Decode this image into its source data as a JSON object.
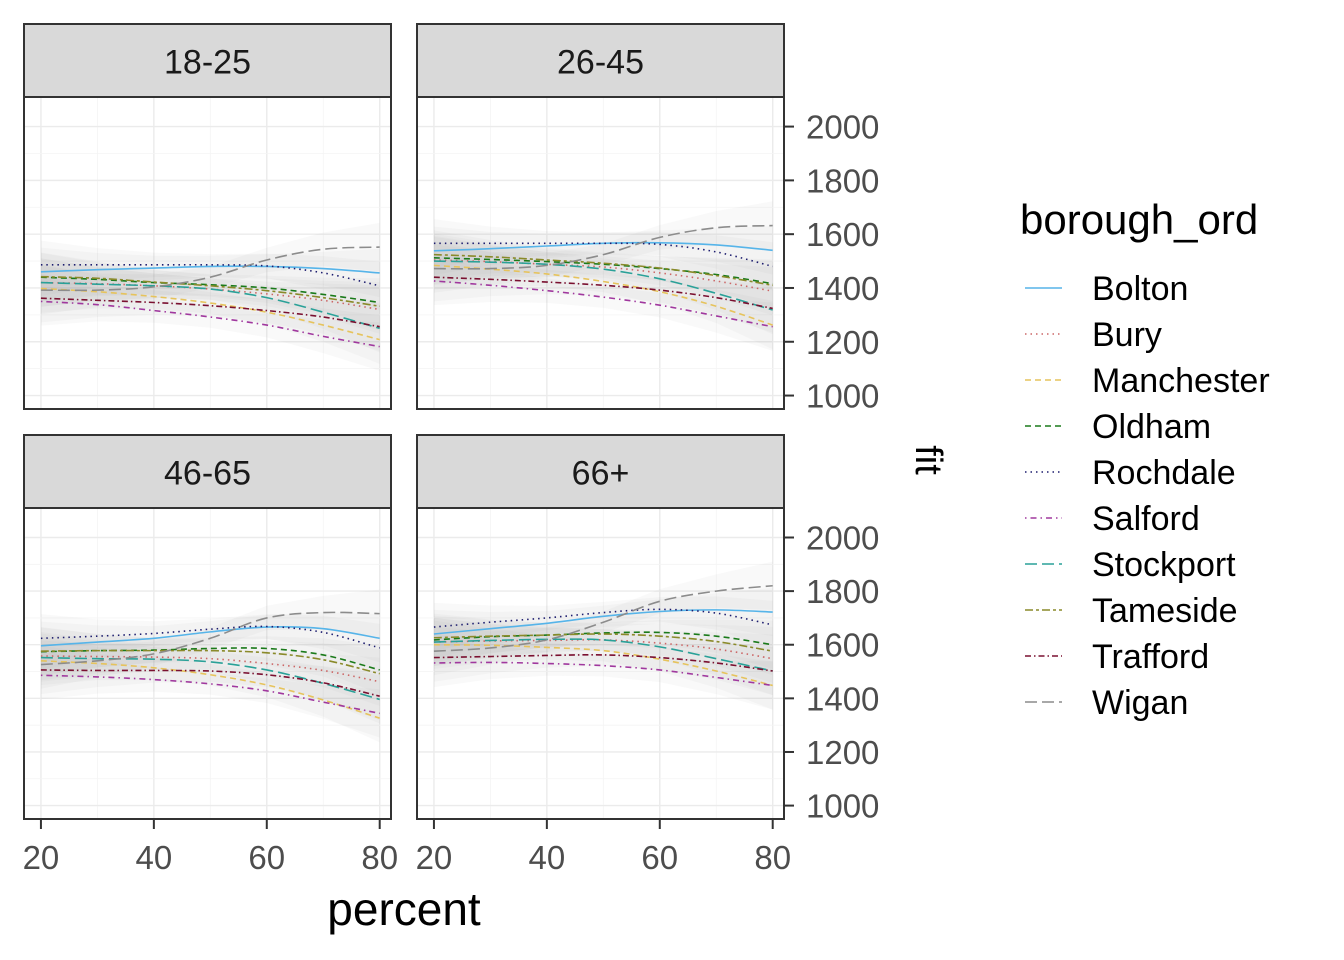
{
  "chart_data": {
    "type": "line",
    "xlabel": "percent",
    "ylabel": "fit",
    "xlim": [
      17,
      82
    ],
    "ylim": [
      950,
      2110
    ],
    "xticks": [
      20,
      40,
      60,
      80
    ],
    "yticks": [
      1000,
      1200,
      1400,
      1600,
      1800,
      2000
    ],
    "grid": true,
    "legend": {
      "title": "borough_ord",
      "placement": "right",
      "entries": [
        "Bolton",
        "Bury",
        "Manchester",
        "Oldham",
        "Rochdale",
        "Salford",
        "Stockport",
        "Tameside",
        "Trafford",
        "Wigan"
      ]
    },
    "x": [
      20,
      30,
      40,
      50,
      60,
      70,
      80
    ],
    "panels": [
      {
        "label": "18-25",
        "series": [
          {
            "name": "Bolton",
            "values": [
              1460,
              1468,
              1474,
              1480,
              1480,
              1472,
              1456
            ]
          },
          {
            "name": "Bury",
            "values": [
              1420,
              1416,
              1408,
              1396,
              1378,
              1354,
              1320
            ]
          },
          {
            "name": "Manchester",
            "values": [
              1398,
              1386,
              1368,
              1344,
              1310,
              1262,
              1208
            ]
          },
          {
            "name": "Oldham",
            "values": [
              1440,
              1432,
              1420,
              1412,
              1400,
              1376,
              1346
            ]
          },
          {
            "name": "Rochdale",
            "values": [
              1486,
              1486,
              1486,
              1486,
              1482,
              1456,
              1408
            ]
          },
          {
            "name": "Salford",
            "values": [
              1350,
              1338,
              1316,
              1292,
              1262,
              1220,
              1182
            ]
          },
          {
            "name": "Stockport",
            "values": [
              1420,
              1414,
              1408,
              1396,
              1364,
              1310,
              1250
            ]
          },
          {
            "name": "Tameside",
            "values": [
              1442,
              1436,
              1422,
              1408,
              1390,
              1364,
              1332
            ]
          },
          {
            "name": "Trafford",
            "values": [
              1362,
              1354,
              1346,
              1334,
              1316,
              1292,
              1256
            ]
          },
          {
            "name": "Wigan",
            "values": [
              1392,
              1392,
              1404,
              1440,
              1504,
              1544,
              1552
            ]
          }
        ]
      },
      {
        "label": "26-45",
        "series": [
          {
            "name": "Bolton",
            "values": [
              1538,
              1546,
              1556,
              1566,
              1568,
              1560,
              1540
            ]
          },
          {
            "name": "Bury",
            "values": [
              1504,
              1498,
              1488,
              1478,
              1456,
              1426,
              1388
            ]
          },
          {
            "name": "Manchester",
            "values": [
              1484,
              1470,
              1452,
              1424,
              1386,
              1332,
              1262
            ]
          },
          {
            "name": "Oldham",
            "values": [
              1512,
              1506,
              1498,
              1488,
              1472,
              1450,
              1416
            ]
          },
          {
            "name": "Rochdale",
            "values": [
              1566,
              1566,
              1566,
              1566,
              1562,
              1534,
              1480
            ]
          },
          {
            "name": "Salford",
            "values": [
              1426,
              1410,
              1390,
              1366,
              1336,
              1296,
              1256
            ]
          },
          {
            "name": "Stockport",
            "values": [
              1500,
              1496,
              1488,
              1470,
              1434,
              1380,
              1318
            ]
          },
          {
            "name": "Tameside",
            "values": [
              1524,
              1516,
              1504,
              1492,
              1474,
              1446,
              1410
            ]
          },
          {
            "name": "Trafford",
            "values": [
              1440,
              1432,
              1422,
              1410,
              1392,
              1364,
              1324
            ]
          },
          {
            "name": "Wigan",
            "values": [
              1472,
              1472,
              1484,
              1524,
              1588,
              1624,
              1632
            ]
          }
        ]
      },
      {
        "label": "46-65",
        "series": [
          {
            "name": "Bolton",
            "values": [
              1596,
              1610,
              1624,
              1648,
              1666,
              1660,
              1624
            ]
          },
          {
            "name": "Bury",
            "values": [
              1558,
              1556,
              1554,
              1548,
              1530,
              1504,
              1462
            ]
          },
          {
            "name": "Manchester",
            "values": [
              1540,
              1530,
              1514,
              1488,
              1450,
              1394,
              1326
            ]
          },
          {
            "name": "Oldham",
            "values": [
              1574,
              1578,
              1580,
              1586,
              1586,
              1562,
              1506
            ]
          },
          {
            "name": "Rochdale",
            "values": [
              1624,
              1632,
              1642,
              1658,
              1668,
              1646,
              1588
            ]
          },
          {
            "name": "Salford",
            "values": [
              1486,
              1480,
              1470,
              1454,
              1428,
              1386,
              1344
            ]
          },
          {
            "name": "Stockport",
            "values": [
              1552,
              1548,
              1546,
              1536,
              1506,
              1456,
              1396
            ]
          },
          {
            "name": "Tameside",
            "values": [
              1576,
              1578,
              1578,
              1578,
              1570,
              1544,
              1492
            ]
          },
          {
            "name": "Trafford",
            "values": [
              1506,
              1504,
              1504,
              1502,
              1488,
              1458,
              1408
            ]
          },
          {
            "name": "Wigan",
            "values": [
              1526,
              1540,
              1566,
              1624,
              1700,
              1720,
              1716
            ]
          }
        ]
      },
      {
        "label": "66+",
        "series": [
          {
            "name": "Bolton",
            "values": [
              1640,
              1660,
              1680,
              1706,
              1724,
              1730,
              1722
            ]
          },
          {
            "name": "Bury",
            "values": [
              1610,
              1614,
              1616,
              1618,
              1606,
              1584,
              1548
            ]
          },
          {
            "name": "Manchester",
            "values": [
              1600,
              1598,
              1590,
              1578,
              1546,
              1502,
              1448
            ]
          },
          {
            "name": "Oldham",
            "values": [
              1618,
              1630,
              1636,
              1644,
              1646,
              1632,
              1600
            ]
          },
          {
            "name": "Rochdale",
            "values": [
              1666,
              1684,
              1700,
              1720,
              1732,
              1718,
              1674
            ]
          },
          {
            "name": "Salford",
            "values": [
              1532,
              1534,
              1530,
              1522,
              1506,
              1478,
              1448
            ]
          },
          {
            "name": "Stockport",
            "values": [
              1610,
              1616,
              1620,
              1618,
              1592,
              1548,
              1502
            ]
          },
          {
            "name": "Tameside",
            "values": [
              1626,
              1632,
              1636,
              1640,
              1632,
              1612,
              1576
            ]
          },
          {
            "name": "Trafford",
            "values": [
              1552,
              1556,
              1560,
              1562,
              1552,
              1532,
              1502
            ]
          },
          {
            "name": "Wigan",
            "values": [
              1576,
              1588,
              1618,
              1684,
              1762,
              1800,
              1820
            ]
          }
        ]
      }
    ],
    "colors": {
      "Bolton": "#56b4e9",
      "Bury": "#cc6666",
      "Manchester": "#e6c35c",
      "Oldham": "#1a7a1a",
      "Rochdale": "#1c1c6e",
      "Salford": "#a0389e",
      "Stockport": "#2aa198",
      "Tameside": "#8a8a2a",
      "Trafford": "#7a1030",
      "Wigan": "#8c8c8c"
    },
    "linetypes": {
      "Bolton": "solid",
      "Bury": "dotted",
      "Manchester": "dashed",
      "Oldham": "dashed",
      "Rochdale": "dotted",
      "Salford": "dotdash",
      "Stockport": "longdash",
      "Tameside": "twodash",
      "Trafford": "dashdot",
      "Wigan": "longdash"
    }
  }
}
